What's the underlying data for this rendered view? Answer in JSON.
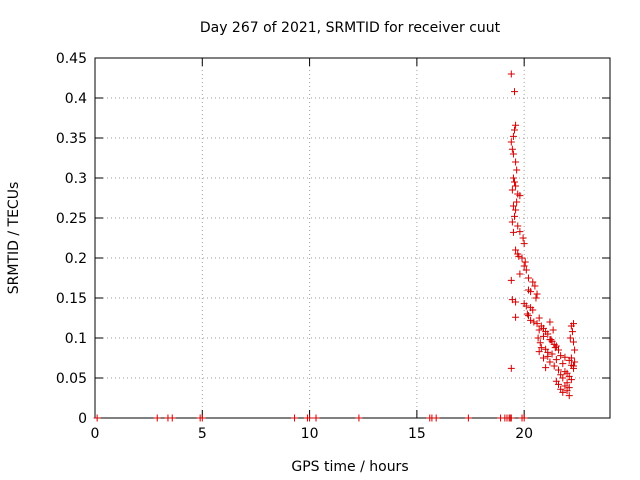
{
  "chart_data": {
    "type": "scatter",
    "title": "Day 267 of 2021, SRMTID for receiver cuut",
    "xlabel": "GPS time / hours",
    "ylabel": "SRMTID / TECUs",
    "xlim": [
      0,
      24
    ],
    "ylim": [
      0,
      0.45
    ],
    "xticks": [
      0,
      5,
      10,
      15,
      20
    ],
    "xtick_labels": [
      "0",
      "5",
      "10",
      "15",
      "20"
    ],
    "yticks": [
      0,
      0.05,
      0.1,
      0.15,
      0.2,
      0.25,
      0.3,
      0.35,
      0.4,
      0.45
    ],
    "ytick_labels": [
      "0",
      "0.05",
      "0.1",
      "0.15",
      "0.2",
      "0.25",
      "0.3",
      "0.35",
      "0.4",
      "0.45"
    ],
    "grid": true,
    "marker": "+",
    "marker_color": "#d40000",
    "series": [
      {
        "name": "SRMTID",
        "points": [
          [
            0.1,
            0
          ],
          [
            2.9,
            0
          ],
          [
            3.4,
            0
          ],
          [
            3.6,
            0
          ],
          [
            4.9,
            0
          ],
          [
            5.0,
            0
          ],
          [
            9.3,
            0
          ],
          [
            9.9,
            0
          ],
          [
            10.0,
            0
          ],
          [
            10.3,
            0
          ],
          [
            12.3,
            0
          ],
          [
            15.6,
            0
          ],
          [
            15.7,
            0
          ],
          [
            15.9,
            0
          ],
          [
            17.4,
            0
          ],
          [
            18.9,
            0
          ],
          [
            19.1,
            0
          ],
          [
            19.2,
            0
          ],
          [
            19.3,
            0
          ],
          [
            19.35,
            0
          ],
          [
            19.4,
            0
          ],
          [
            19.9,
            0
          ],
          [
            20.0,
            0
          ],
          [
            19.4,
            0.43
          ],
          [
            19.55,
            0.408
          ],
          [
            19.6,
            0.366
          ],
          [
            19.55,
            0.36
          ],
          [
            19.5,
            0.352
          ],
          [
            19.4,
            0.345
          ],
          [
            19.45,
            0.336
          ],
          [
            19.5,
            0.33
          ],
          [
            19.6,
            0.32
          ],
          [
            19.65,
            0.31
          ],
          [
            19.5,
            0.3
          ],
          [
            19.55,
            0.295
          ],
          [
            19.6,
            0.29
          ],
          [
            19.45,
            0.285
          ],
          [
            19.7,
            0.28
          ],
          [
            19.8,
            0.278
          ],
          [
            19.65,
            0.27
          ],
          [
            19.5,
            0.265
          ],
          [
            19.6,
            0.26
          ],
          [
            19.55,
            0.252
          ],
          [
            19.45,
            0.245
          ],
          [
            19.7,
            0.24
          ],
          [
            19.8,
            0.233
          ],
          [
            19.5,
            0.232
          ],
          [
            19.95,
            0.225
          ],
          [
            20.0,
            0.218
          ],
          [
            19.6,
            0.21
          ],
          [
            19.7,
            0.205
          ],
          [
            19.75,
            0.202
          ],
          [
            19.9,
            0.2
          ],
          [
            20.05,
            0.195
          ],
          [
            20.0,
            0.19
          ],
          [
            20.1,
            0.185
          ],
          [
            19.8,
            0.18
          ],
          [
            20.2,
            0.175
          ],
          [
            19.4,
            0.172
          ],
          [
            20.4,
            0.17
          ],
          [
            20.5,
            0.165
          ],
          [
            20.2,
            0.16
          ],
          [
            20.3,
            0.158
          ],
          [
            20.6,
            0.155
          ],
          [
            20.55,
            0.15
          ],
          [
            19.45,
            0.148
          ],
          [
            19.6,
            0.145
          ],
          [
            20.0,
            0.143
          ],
          [
            20.1,
            0.14
          ],
          [
            20.3,
            0.138
          ],
          [
            20.4,
            0.135
          ],
          [
            20.15,
            0.13
          ],
          [
            20.2,
            0.128
          ],
          [
            19.6,
            0.126
          ],
          [
            20.7,
            0.125
          ],
          [
            20.3,
            0.122
          ],
          [
            20.45,
            0.12
          ],
          [
            20.6,
            0.118
          ],
          [
            20.8,
            0.115
          ],
          [
            20.9,
            0.112
          ],
          [
            20.7,
            0.11
          ],
          [
            21.0,
            0.108
          ],
          [
            21.1,
            0.105
          ],
          [
            20.9,
            0.102
          ],
          [
            20.65,
            0.1
          ],
          [
            21.2,
            0.098
          ],
          [
            21.3,
            0.096
          ],
          [
            20.75,
            0.094
          ],
          [
            21.4,
            0.092
          ],
          [
            21.5,
            0.09
          ],
          [
            20.8,
            0.088
          ],
          [
            21.0,
            0.086
          ],
          [
            21.6,
            0.085
          ],
          [
            20.7,
            0.083
          ],
          [
            21.1,
            0.082
          ],
          [
            21.3,
            0.08
          ],
          [
            21.7,
            0.078
          ],
          [
            21.9,
            0.076
          ],
          [
            20.9,
            0.075
          ],
          [
            21.5,
            0.073
          ],
          [
            22.1,
            0.072
          ],
          [
            21.2,
            0.07
          ],
          [
            21.8,
            0.068
          ],
          [
            22.2,
            0.066
          ],
          [
            21.4,
            0.065
          ],
          [
            21.0,
            0.063
          ],
          [
            19.4,
            0.062
          ],
          [
            22.3,
            0.062
          ],
          [
            21.6,
            0.06
          ],
          [
            21.9,
            0.058
          ],
          [
            22.0,
            0.056
          ],
          [
            21.7,
            0.054
          ],
          [
            22.1,
            0.052
          ],
          [
            21.8,
            0.05
          ],
          [
            22.2,
            0.048
          ],
          [
            21.5,
            0.046
          ],
          [
            22.0,
            0.044
          ],
          [
            21.6,
            0.042
          ],
          [
            21.9,
            0.04
          ],
          [
            22.1,
            0.038
          ],
          [
            21.7,
            0.036
          ],
          [
            22.0,
            0.034
          ],
          [
            21.8,
            0.032
          ],
          [
            22.1,
            0.028
          ],
          [
            22.2,
            0.115
          ],
          [
            22.3,
            0.118
          ],
          [
            22.25,
            0.108
          ],
          [
            22.15,
            0.1
          ],
          [
            22.3,
            0.095
          ],
          [
            22.35,
            0.085
          ],
          [
            22.2,
            0.075
          ],
          [
            22.35,
            0.07
          ],
          [
            22.3,
            0.065
          ],
          [
            21.2,
            0.12
          ],
          [
            21.35,
            0.11
          ],
          [
            21.25,
            0.098
          ],
          [
            21.45,
            0.088
          ],
          [
            21.1,
            0.077
          ]
        ]
      }
    ]
  }
}
